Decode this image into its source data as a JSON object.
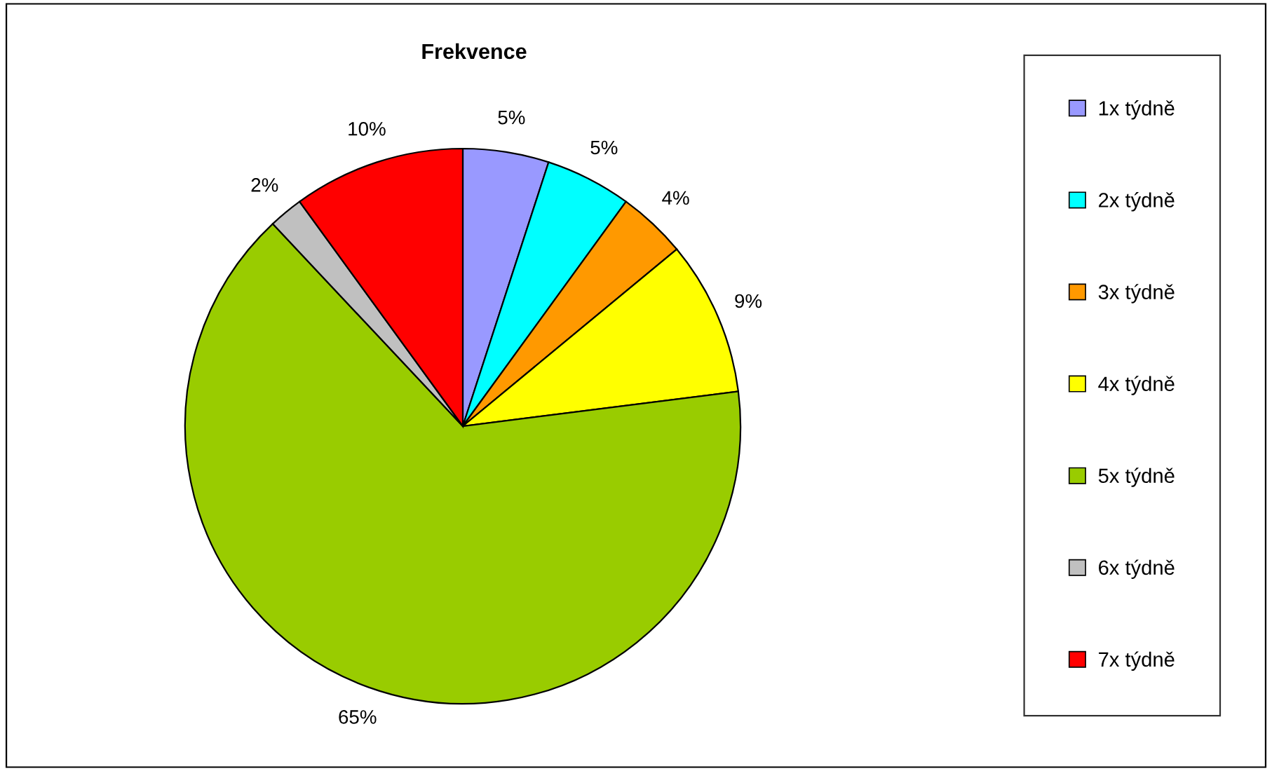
{
  "chart_data": {
    "type": "pie",
    "title": "Frekvence",
    "categories": [
      "1x týdně",
      "2x týdně",
      "3x týdně",
      "4x týdně",
      "5x týdně",
      "6x týdně",
      "7x týdně"
    ],
    "values": [
      5,
      5,
      4,
      9,
      65,
      2,
      10
    ],
    "colors": [
      "#9999ff",
      "#00ffff",
      "#ff9900",
      "#ffff00",
      "#99cc00",
      "#c0c0c0",
      "#ff0000"
    ],
    "value_labels": [
      "5%",
      "5%",
      "4%",
      "9%",
      "65%",
      "2%",
      "10%"
    ],
    "legend": "right"
  }
}
